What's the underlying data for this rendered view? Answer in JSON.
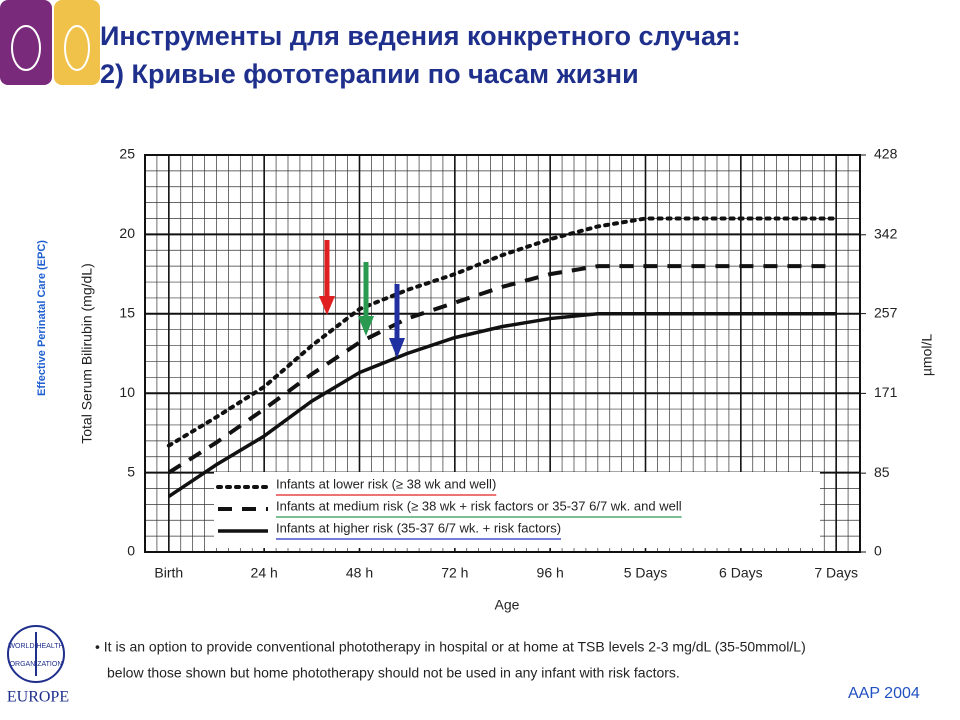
{
  "title_lines": [
    "Инструменты для ведения  конкретного случая:",
    "2) Кривые фототерапии по часам жизни"
  ],
  "side_text": "Effective Perinatal Care (EPC)",
  "logo": {
    "lines": [
      "WORLD HEALTH",
      "ORGANIZATION"
    ],
    "region": "EUROPE"
  },
  "footnote": [
    "• It is an option to provide conventional phototherapy in hospital or at home at TSB levels 2-3 mg/dL (35-50mmol/L)",
    "below those shown but home phototherapy should not be used in any infant with risk factors."
  ],
  "source": "AAP 2004",
  "chart_data": {
    "type": "line",
    "y_label": "Total Serum Bilirubin (mg/dL)",
    "y2_label": "µmol/L",
    "x_label": "Age",
    "xlim": [
      -6,
      174
    ],
    "ylim": [
      0,
      25
    ],
    "y2lim": [
      0,
      428
    ],
    "xticks": [
      {
        "value": 0,
        "label": "Birth"
      },
      {
        "value": 24,
        "label": "24 h"
      },
      {
        "value": 48,
        "label": "48 h"
      },
      {
        "value": 72,
        "label": "72 h"
      },
      {
        "value": 96,
        "label": "96 h"
      },
      {
        "value": 120,
        "label": "5 Days"
      },
      {
        "value": 144,
        "label": "6 Days"
      },
      {
        "value": 168,
        "label": "7 Days"
      }
    ],
    "yticks": [
      0,
      5,
      10,
      15,
      20,
      25
    ],
    "y2ticks": [
      0,
      85,
      171,
      257,
      342,
      428
    ],
    "grid": true,
    "x": [
      0,
      12,
      24,
      36,
      48,
      60,
      72,
      84,
      96,
      108,
      120,
      144,
      168
    ],
    "series": [
      {
        "name": "Infants at lower risk (≥ 38 wk and well)",
        "color": "#111111",
        "style": "dotted",
        "legend_underline": "#e02020",
        "values": [
          6.7,
          8.5,
          10.4,
          13.0,
          15.3,
          16.5,
          17.5,
          18.7,
          19.7,
          20.5,
          21,
          21,
          21
        ]
      },
      {
        "name": "Infants at medium risk (≥ 38 wk + risk factors or 35-37 6/7 wk. and well",
        "color": "#111111",
        "style": "dashed",
        "legend_underline": "#2a9a50",
        "values": [
          5.0,
          6.9,
          9.0,
          11.2,
          13.2,
          14.7,
          15.7,
          16.7,
          17.5,
          18,
          18,
          18,
          18
        ]
      },
      {
        "name": "Infants at higher risk (35-37 6/7 wk. + risk factors)",
        "color": "#111111",
        "style": "solid",
        "legend_underline": "#2030c0",
        "values": [
          3.5,
          5.5,
          7.3,
          9.5,
          11.3,
          12.5,
          13.5,
          14.2,
          14.7,
          15,
          15,
          15,
          15
        ]
      }
    ]
  }
}
